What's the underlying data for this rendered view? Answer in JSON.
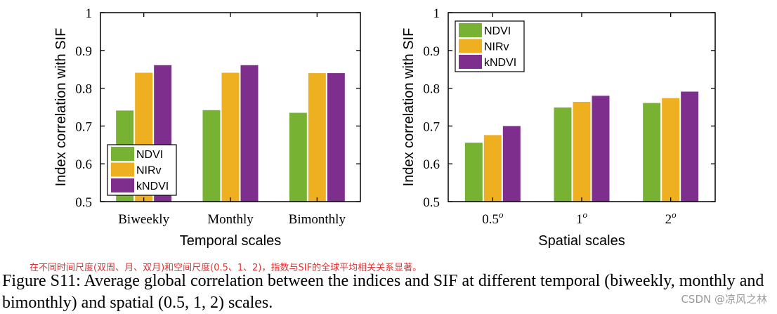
{
  "colors": {
    "NDVI": "#77b232",
    "NIRv": "#eeb021",
    "kNDVI": "#7e2f8e"
  },
  "chart_data": [
    {
      "type": "bar",
      "categories": [
        "Biweekly",
        "Monthly",
        "Bimonthly"
      ],
      "series": [
        {
          "name": "NDVI",
          "values": [
            0.741,
            0.742,
            0.735
          ]
        },
        {
          "name": "NIRv",
          "values": [
            0.841,
            0.841,
            0.84
          ]
        },
        {
          "name": "kNDVI",
          "values": [
            0.861,
            0.861,
            0.84
          ]
        }
      ],
      "title": "",
      "xlabel": "Temporal scales",
      "ylabel": "Index correlation with SIF",
      "ylim": [
        0.5,
        1
      ],
      "yticks": [
        "0.5",
        "0.6",
        "0.7",
        "0.8",
        "0.9",
        "1"
      ],
      "legend": "bottom-left"
    },
    {
      "type": "bar",
      "categories": [
        "0.5",
        "1",
        "2"
      ],
      "category_superscript": "o",
      "series": [
        {
          "name": "NDVI",
          "values": [
            0.656,
            0.749,
            0.761
          ]
        },
        {
          "name": "NIRv",
          "values": [
            0.676,
            0.764,
            0.774
          ]
        },
        {
          "name": "kNDVI",
          "values": [
            0.7,
            0.78,
            0.791
          ]
        }
      ],
      "title": "",
      "xlabel": "Spatial scales",
      "ylabel": "Index correlation with SIF",
      "ylim": [
        0.5,
        1
      ],
      "yticks": [
        "0.5",
        "0.6",
        "0.7",
        "0.8",
        "0.9",
        "1"
      ],
      "legend": "top-left"
    }
  ],
  "note": "在不同时间尺度(双周、月、双月)和空间尺度(0.5、1、2)，指数与SIF的全球平均相关关系显著。",
  "caption": "Figure S11: Average global correlation between the indices and SIF at different temporal (biweekly, monthly and bimonthly) and spatial (0.5, 1, 2) scales.",
  "watermark": "CSDN @凉风之林"
}
